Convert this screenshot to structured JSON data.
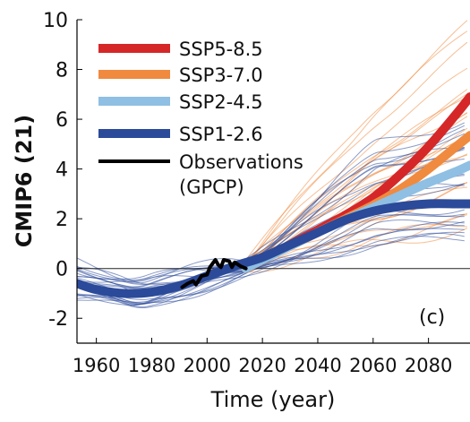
{
  "chart_data": {
    "type": "line",
    "panel_label": "(c)",
    "xlabel": "Time (year)",
    "ylabel": "CMIP6 (21)",
    "xlim": [
      1953,
      2095
    ],
    "ylim": [
      -3,
      10
    ],
    "xticks": [
      1960,
      1980,
      2000,
      2020,
      2040,
      2060,
      2080
    ],
    "yticks": [
      -2,
      0,
      2,
      4,
      6,
      8,
      10
    ],
    "reference_line_y": 0,
    "legend_position": "top-left",
    "series": [
      {
        "name": "SSP5-8.5",
        "color": "#d62728",
        "x": [
          2014,
          2020,
          2030,
          2040,
          2050,
          2060,
          2070,
          2080,
          2090,
          2095
        ],
        "y": [
          0.0,
          0.35,
          0.95,
          1.55,
          2.15,
          2.85,
          3.8,
          4.9,
          6.2,
          6.9
        ]
      },
      {
        "name": "SSP3-7.0",
        "color": "#f08a3e",
        "x": [
          2014,
          2020,
          2030,
          2040,
          2050,
          2060,
          2070,
          2080,
          2090,
          2095
        ],
        "y": [
          0.0,
          0.35,
          0.9,
          1.45,
          2.0,
          2.55,
          3.2,
          4.0,
          4.9,
          5.35
        ]
      },
      {
        "name": "SSP2-4.5",
        "color": "#8fbfe3",
        "x": [
          2014,
          2020,
          2030,
          2040,
          2050,
          2060,
          2070,
          2080,
          2090,
          2095
        ],
        "y": [
          0.0,
          0.35,
          0.9,
          1.45,
          1.95,
          2.45,
          2.95,
          3.45,
          3.9,
          4.15
        ]
      },
      {
        "name": "SSP1-2.6",
        "color": "#2b4a9a",
        "x": [
          1953,
          1960,
          1970,
          1980,
          1990,
          2000,
          2010,
          2020,
          2030,
          2040,
          2050,
          2060,
          2070,
          2080,
          2090,
          2095
        ],
        "y": [
          -0.6,
          -0.85,
          -1.0,
          -0.95,
          -0.7,
          -0.3,
          0.1,
          0.45,
          0.95,
          1.45,
          1.95,
          2.3,
          2.5,
          2.6,
          2.6,
          2.6
        ]
      },
      {
        "name": "Observations\n(GPCP)",
        "color": "#000000",
        "x": [
          1991,
          1993,
          1995,
          1996,
          1998,
          2000,
          2001,
          2003,
          2004,
          2005,
          2006,
          2008,
          2009,
          2010,
          2012,
          2014
        ],
        "y": [
          -0.75,
          -0.6,
          -0.5,
          -0.65,
          -0.3,
          -0.25,
          0.05,
          0.35,
          0.15,
          0.05,
          0.35,
          0.3,
          0.05,
          0.25,
          0.1,
          0.0
        ]
      }
    ],
    "ensemble_bands": [
      {
        "color": "#f08a3e",
        "x": [
          2014,
          2060,
          2095
        ],
        "ymin": [
          0.0,
          0.7,
          1.2
        ],
        "ymax": [
          0.3,
          6.5,
          10.0
        ]
      },
      {
        "color": "#2b4a9a",
        "x": [
          1953,
          1975,
          2014,
          2060,
          2095
        ],
        "ymin": [
          -1.2,
          -1.6,
          -0.3,
          1.0,
          1.2
        ],
        "ymax": [
          0.3,
          -0.3,
          0.3,
          5.0,
          6.3
        ]
      }
    ]
  }
}
